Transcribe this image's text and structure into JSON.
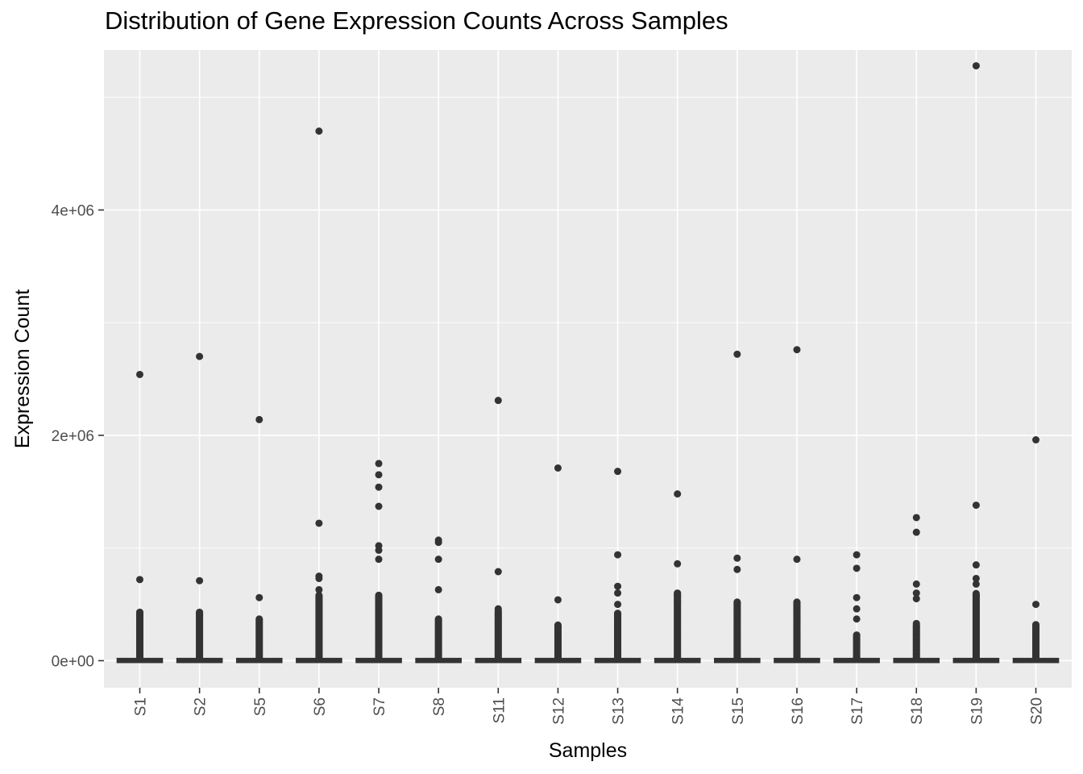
{
  "chart_data": {
    "type": "box",
    "title": "Distribution of Gene Expression Counts Across Samples",
    "xlabel": "Samples",
    "ylabel": "Expression Count",
    "ylim": [
      -240000,
      5420000
    ],
    "yticks": [
      0,
      2000000,
      4000000
    ],
    "ytick_labels": [
      "0e+00",
      "2e+06",
      "4e+06"
    ],
    "grid": true,
    "categories": [
      "S1",
      "S2",
      "S5",
      "S6",
      "S7",
      "S8",
      "S11",
      "S12",
      "S13",
      "S14",
      "S15",
      "S16",
      "S17",
      "S18",
      "S19",
      "S20"
    ],
    "box_stats": [
      {
        "min": 0,
        "q1": 0,
        "median": 0,
        "q3": 4000,
        "max": 9000
      },
      {
        "min": 0,
        "q1": 0,
        "median": 0,
        "q3": 4000,
        "max": 9000
      },
      {
        "min": 0,
        "q1": 0,
        "median": 0,
        "q3": 4000,
        "max": 9000
      },
      {
        "min": 0,
        "q1": 0,
        "median": 0,
        "q3": 4000,
        "max": 9000
      },
      {
        "min": 0,
        "q1": 0,
        "median": 0,
        "q3": 4000,
        "max": 9000
      },
      {
        "min": 0,
        "q1": 0,
        "median": 0,
        "q3": 4000,
        "max": 9000
      },
      {
        "min": 0,
        "q1": 0,
        "median": 0,
        "q3": 4000,
        "max": 9000
      },
      {
        "min": 0,
        "q1": 0,
        "median": 0,
        "q3": 4000,
        "max": 9000
      },
      {
        "min": 0,
        "q1": 0,
        "median": 0,
        "q3": 4000,
        "max": 9000
      },
      {
        "min": 0,
        "q1": 0,
        "median": 0,
        "q3": 4000,
        "max": 9000
      },
      {
        "min": 0,
        "q1": 0,
        "median": 0,
        "q3": 4000,
        "max": 9000
      },
      {
        "min": 0,
        "q1": 0,
        "median": 0,
        "q3": 4000,
        "max": 9000
      },
      {
        "min": 0,
        "q1": 0,
        "median": 0,
        "q3": 4000,
        "max": 9000
      },
      {
        "min": 0,
        "q1": 0,
        "median": 0,
        "q3": 4000,
        "max": 9000
      },
      {
        "min": 0,
        "q1": 0,
        "median": 0,
        "q3": 4000,
        "max": 9000
      },
      {
        "min": 0,
        "q1": 0,
        "median": 0,
        "q3": 4000,
        "max": 9000
      }
    ],
    "outlier_max_dense": [
      430000,
      430000,
      370000,
      580000,
      580000,
      370000,
      450000,
      320000,
      420000,
      600000,
      520000,
      520000,
      230000,
      320000,
      600000,
      320000
    ],
    "outliers_high": [
      [
        2540000,
        720000,
        430000
      ],
      [
        2700000,
        710000,
        430000
      ],
      [
        2140000,
        560000,
        370000
      ],
      [
        4700000,
        1220000,
        750000,
        730000,
        630000
      ],
      [
        1750000,
        1650000,
        1540000,
        1370000,
        1020000,
        980000,
        900000,
        580000,
        550000
      ],
      [
        1070000,
        1050000,
        900000,
        630000,
        370000
      ],
      [
        2310000,
        790000,
        460000,
        330000
      ],
      [
        1710000,
        540000,
        310000
      ],
      [
        1680000,
        940000,
        660000,
        600000,
        500000,
        420000
      ],
      [
        1480000,
        860000,
        600000,
        580000,
        530000
      ],
      [
        2720000,
        910000,
        810000,
        520000
      ],
      [
        2760000,
        900000,
        520000
      ],
      [
        940000,
        820000,
        560000,
        460000,
        370000
      ],
      [
        1270000,
        1140000,
        680000,
        600000,
        550000,
        330000
      ],
      [
        5280000,
        1380000,
        850000,
        730000,
        680000,
        580000
      ],
      [
        1960000,
        500000,
        320000
      ]
    ]
  }
}
